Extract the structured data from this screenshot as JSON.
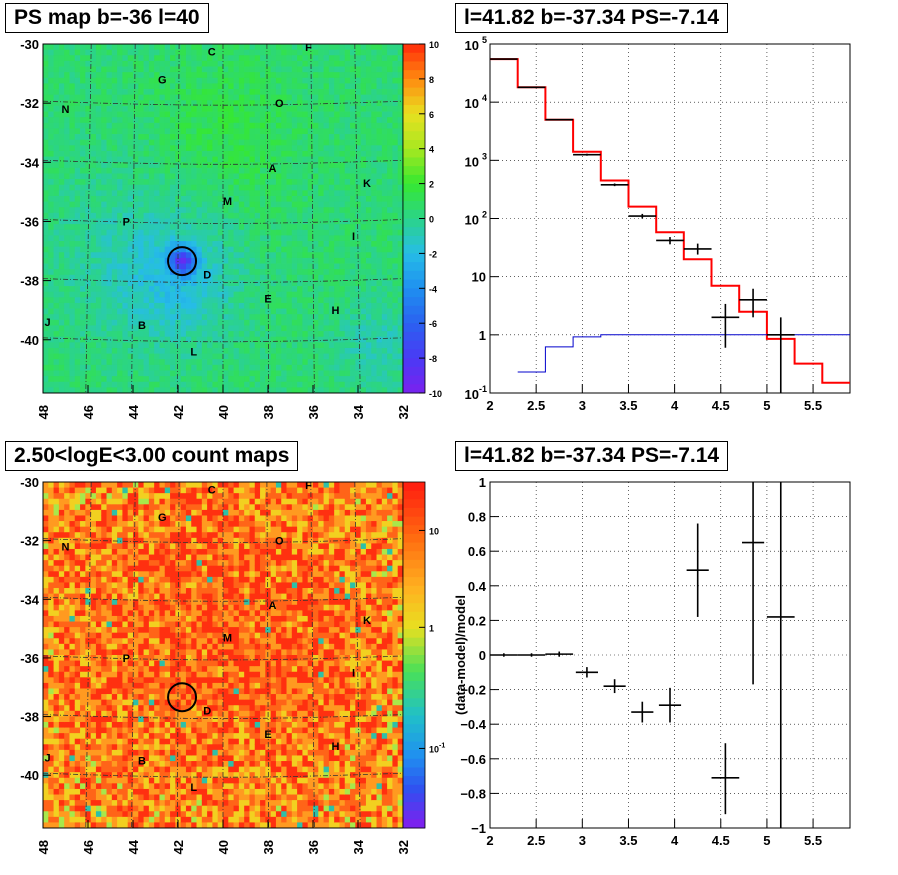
{
  "chart_data": [
    {
      "type": "heatmap",
      "title": "PS map b=-36 l=40",
      "x_ticks": [
        48,
        46,
        44,
        42,
        40,
        38,
        36,
        34,
        32
      ],
      "y_ticks": [
        -30,
        -32,
        -34,
        -36,
        -38,
        -40
      ],
      "xlim": [
        48,
        32
      ],
      "ylim": [
        -41.8,
        -30
      ],
      "colorbar": {
        "ticks": [
          10,
          8,
          6,
          4,
          2,
          0,
          -2,
          -4,
          -6,
          -8,
          -10
        ],
        "range": [
          -10,
          10
        ]
      },
      "source_circle": {
        "l": 41.82,
        "b": -37.34
      },
      "field_labels": [
        {
          "t": "C",
          "l": 40.5,
          "b": -30.25
        },
        {
          "t": "F",
          "l": 36.2,
          "b": -30.1
        },
        {
          "t": "G",
          "l": 42.7,
          "b": -31.2
        },
        {
          "t": "N",
          "l": 47.0,
          "b": -32.2
        },
        {
          "t": "O",
          "l": 37.5,
          "b": -32.0
        },
        {
          "t": "A",
          "l": 37.8,
          "b": -34.2
        },
        {
          "t": "K",
          "l": 33.6,
          "b": -34.7
        },
        {
          "t": "M",
          "l": 39.8,
          "b": -35.3
        },
        {
          "t": "P",
          "l": 44.3,
          "b": -36.0
        },
        {
          "t": "I",
          "l": 34.2,
          "b": -36.5
        },
        {
          "t": "D",
          "l": 40.7,
          "b": -37.8
        },
        {
          "t": "E",
          "l": 38.0,
          "b": -38.6
        },
        {
          "t": "H",
          "l": 35.0,
          "b": -39.0
        },
        {
          "t": "J",
          "l": 47.8,
          "b": -39.4
        },
        {
          "t": "B",
          "l": 43.6,
          "b": -39.5
        },
        {
          "t": "L",
          "l": 41.3,
          "b": -40.4
        }
      ]
    },
    {
      "type": "line",
      "title": "l=41.82 b=-37.34 PS=-7.14",
      "xlim": [
        2.0,
        5.9
      ],
      "ylim": [
        0.1,
        100000
      ],
      "ylog": true,
      "x_ticks": [
        "2",
        "2.5",
        "3",
        "3.5",
        "4",
        "4.5",
        "5",
        "5.5"
      ],
      "y_ticks": [
        "10^-1",
        "1",
        "10",
        "10^2",
        "10^3",
        "10^4",
        "10^5"
      ],
      "series": [
        {
          "color": "#ff0000",
          "steps": [
            [
              2.0,
              2.3,
              55000
            ],
            [
              2.3,
              2.6,
              18000
            ],
            [
              2.6,
              2.9,
              5000
            ],
            [
              2.9,
              3.2,
              1400
            ],
            [
              3.2,
              3.5,
              450
            ],
            [
              3.5,
              3.8,
              160
            ],
            [
              3.8,
              4.1,
              58
            ],
            [
              4.1,
              4.4,
              20
            ],
            [
              4.4,
              4.7,
              7
            ],
            [
              4.7,
              5.0,
              2.5
            ],
            [
              5.0,
              5.3,
              0.85
            ],
            [
              5.3,
              5.6,
              0.32
            ],
            [
              5.6,
              5.9,
              0.15
            ]
          ]
        },
        {
          "color": "#0000cc",
          "steps": [
            [
              2.3,
              2.6,
              0.23
            ],
            [
              2.6,
              2.9,
              0.62
            ],
            [
              2.9,
              3.2,
              0.92
            ],
            [
              3.2,
              5.9,
              1.0
            ]
          ]
        }
      ],
      "points": [
        {
          "x": 2.15,
          "dx": 0.15,
          "y": 55000,
          "ylo": 54000,
          "yhi": 56000
        },
        {
          "x": 2.45,
          "dx": 0.15,
          "y": 18000,
          "ylo": 17500,
          "yhi": 18500
        },
        {
          "x": 2.75,
          "dx": 0.15,
          "y": 5000,
          "ylo": 4900,
          "yhi": 5100
        },
        {
          "x": 3.05,
          "dx": 0.15,
          "y": 1250,
          "ylo": 1200,
          "yhi": 1300
        },
        {
          "x": 3.35,
          "dx": 0.15,
          "y": 380,
          "ylo": 360,
          "yhi": 400
        },
        {
          "x": 3.65,
          "dx": 0.15,
          "y": 110,
          "ylo": 100,
          "yhi": 120
        },
        {
          "x": 3.95,
          "dx": 0.15,
          "y": 42,
          "ylo": 36,
          "yhi": 48
        },
        {
          "x": 4.25,
          "dx": 0.15,
          "y": 30,
          "ylo": 24,
          "yhi": 37
        },
        {
          "x": 4.55,
          "dx": 0.15,
          "y": 2.0,
          "ylo": 0.6,
          "yhi": 3.4
        },
        {
          "x": 4.85,
          "dx": 0.15,
          "y": 4.0,
          "ylo": 2.0,
          "yhi": 6.2
        },
        {
          "x": 5.15,
          "dx": 0.15,
          "y": 1.0,
          "ylo": 0.1,
          "yhi": 2.0
        }
      ]
    },
    {
      "type": "heatmap",
      "title": "2.50<logE<3.00 count maps",
      "x_ticks": [
        48,
        46,
        44,
        42,
        40,
        38,
        36,
        34,
        32
      ],
      "y_ticks": [
        -30,
        -32,
        -34,
        -36,
        -38,
        -40
      ],
      "xlim": [
        48,
        32
      ],
      "ylim": [
        -41.8,
        -30
      ],
      "colorbar": {
        "ticks": [
          "10",
          "1",
          "10^-1"
        ],
        "log": true
      },
      "source_circle": {
        "l": 41.82,
        "b": -37.34
      },
      "field_labels": [
        {
          "t": "C",
          "l": 40.5,
          "b": -30.25
        },
        {
          "t": "F",
          "l": 36.2,
          "b": -30.1
        },
        {
          "t": "G",
          "l": 42.7,
          "b": -31.2
        },
        {
          "t": "N",
          "l": 47.0,
          "b": -32.2
        },
        {
          "t": "O",
          "l": 37.5,
          "b": -32.0
        },
        {
          "t": "A",
          "l": 37.8,
          "b": -34.2
        },
        {
          "t": "K",
          "l": 33.6,
          "b": -34.7
        },
        {
          "t": "M",
          "l": 39.8,
          "b": -35.3
        },
        {
          "t": "P",
          "l": 44.3,
          "b": -36.0
        },
        {
          "t": "I",
          "l": 34.2,
          "b": -36.5
        },
        {
          "t": "D",
          "l": 40.7,
          "b": -37.8
        },
        {
          "t": "E",
          "l": 38.0,
          "b": -38.6
        },
        {
          "t": "H",
          "l": 35.0,
          "b": -39.0
        },
        {
          "t": "J",
          "l": 47.8,
          "b": -39.4
        },
        {
          "t": "B",
          "l": 43.6,
          "b": -39.5
        },
        {
          "t": "L",
          "l": 41.3,
          "b": -40.4
        }
      ]
    },
    {
      "type": "scatter",
      "title": "l=41.82 b=-37.34 PS=-7.14",
      "ylabel": "(data-model)/model",
      "xlim": [
        2.0,
        5.9
      ],
      "ylim": [
        -1,
        1
      ],
      "x_ticks": [
        "2",
        "2.5",
        "3",
        "3.5",
        "4",
        "4.5",
        "5",
        "5.5"
      ],
      "y_ticks": [
        "1",
        "0.8",
        "0.6",
        "0.4",
        "0.2",
        "0",
        "−0.2",
        "−0.4",
        "−0.6",
        "−0.8",
        "−1"
      ],
      "points": [
        {
          "x": 2.15,
          "dx": 0.15,
          "y": 0.0,
          "ylo": -0.01,
          "yhi": 0.01
        },
        {
          "x": 2.45,
          "dx": 0.15,
          "y": 0.0,
          "ylo": -0.01,
          "yhi": 0.01
        },
        {
          "x": 2.75,
          "dx": 0.15,
          "y": 0.005,
          "ylo": -0.01,
          "yhi": 0.02
        },
        {
          "x": 3.05,
          "dx": 0.12,
          "y": -0.1,
          "ylo": -0.13,
          "yhi": -0.07
        },
        {
          "x": 3.35,
          "dx": 0.12,
          "y": -0.18,
          "ylo": -0.22,
          "yhi": -0.14
        },
        {
          "x": 3.65,
          "dx": 0.12,
          "y": -0.33,
          "ylo": -0.39,
          "yhi": -0.27
        },
        {
          "x": 3.95,
          "dx": 0.12,
          "y": -0.29,
          "ylo": -0.39,
          "yhi": -0.19
        },
        {
          "x": 4.25,
          "dx": 0.12,
          "y": 0.49,
          "ylo": 0.22,
          "yhi": 0.76
        },
        {
          "x": 4.55,
          "dx": 0.15,
          "y": -0.71,
          "ylo": -0.92,
          "yhi": -0.51
        },
        {
          "x": 4.85,
          "dx": 0.12,
          "y": 0.65,
          "ylo": -0.17,
          "yhi": 1.0
        },
        {
          "x": 5.15,
          "dx": 0.15,
          "y": 0.22,
          "ylo": -1.0,
          "yhi": 1.0
        }
      ]
    }
  ]
}
